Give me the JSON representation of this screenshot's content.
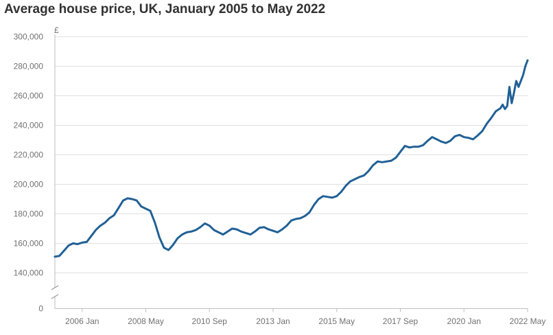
{
  "chart_data": {
    "type": "line",
    "title": "Average house price, UK, January 2005 to May 2022",
    "ylabel": "£",
    "xlabel": "",
    "y_axis_break": true,
    "ylim": [
      0,
      300000
    ],
    "y_ticks": [
      {
        "value": 300000,
        "label": "300,000"
      },
      {
        "value": 280000,
        "label": "280,000"
      },
      {
        "value": 260000,
        "label": "260,000"
      },
      {
        "value": 240000,
        "label": "240,000"
      },
      {
        "value": 220000,
        "label": "220,000"
      },
      {
        "value": 200000,
        "label": "200,000"
      },
      {
        "value": 180000,
        "label": "180,000"
      },
      {
        "value": 160000,
        "label": "160,000"
      },
      {
        "value": 140000,
        "label": "140,000"
      },
      {
        "value": 0,
        "label": "0"
      }
    ],
    "x_ticks": [
      {
        "value": "2006-01",
        "label": "2006 Jan"
      },
      {
        "value": "2008-05",
        "label": "2008 May"
      },
      {
        "value": "2010-09",
        "label": "2010 Sep"
      },
      {
        "value": "2013-01",
        "label": "2013 Jan"
      },
      {
        "value": "2015-05",
        "label": "2015 May"
      },
      {
        "value": "2017-09",
        "label": "2017 Sep"
      },
      {
        "value": "2020-01",
        "label": "2020 Jan"
      },
      {
        "value": "2022-05",
        "label": "2022 May"
      }
    ],
    "grid": true,
    "legend": "none",
    "colors": {
      "line": "#206095",
      "grid": "#e0e0e0",
      "axis": "#bebebe",
      "text": "#707071",
      "title": "#323132"
    },
    "series": [
      {
        "points": [
          [
            "2005-01",
            151000
          ],
          [
            "2005-03",
            151500
          ],
          [
            "2005-05",
            155000
          ],
          [
            "2005-07",
            158500
          ],
          [
            "2005-09",
            160000
          ],
          [
            "2005-11",
            159500
          ],
          [
            "2006-01",
            160500
          ],
          [
            "2006-03",
            161000
          ],
          [
            "2006-05",
            165000
          ],
          [
            "2006-07",
            169000
          ],
          [
            "2006-09",
            172000
          ],
          [
            "2006-11",
            174000
          ],
          [
            "2007-01",
            177000
          ],
          [
            "2007-03",
            179000
          ],
          [
            "2007-05",
            184000
          ],
          [
            "2007-07",
            189000
          ],
          [
            "2007-09",
            190500
          ],
          [
            "2007-11",
            190000
          ],
          [
            "2008-01",
            189000
          ],
          [
            "2008-03",
            185000
          ],
          [
            "2008-05",
            183500
          ],
          [
            "2008-07",
            182000
          ],
          [
            "2008-09",
            174000
          ],
          [
            "2008-11",
            164000
          ],
          [
            "2009-01",
            157000
          ],
          [
            "2009-03",
            155500
          ],
          [
            "2009-05",
            159000
          ],
          [
            "2009-07",
            163500
          ],
          [
            "2009-09",
            166000
          ],
          [
            "2009-11",
            167500
          ],
          [
            "2010-01",
            168000
          ],
          [
            "2010-03",
            169000
          ],
          [
            "2010-05",
            171000
          ],
          [
            "2010-07",
            173500
          ],
          [
            "2010-09",
            172000
          ],
          [
            "2010-11",
            169000
          ],
          [
            "2011-01",
            167500
          ],
          [
            "2011-03",
            166000
          ],
          [
            "2011-05",
            168000
          ],
          [
            "2011-07",
            170000
          ],
          [
            "2011-09",
            169500
          ],
          [
            "2011-11",
            168000
          ],
          [
            "2012-01",
            167000
          ],
          [
            "2012-03",
            166000
          ],
          [
            "2012-05",
            168000
          ],
          [
            "2012-07",
            170500
          ],
          [
            "2012-09",
            171000
          ],
          [
            "2012-11",
            169500
          ],
          [
            "2013-01",
            168500
          ],
          [
            "2013-03",
            167500
          ],
          [
            "2013-05",
            169500
          ],
          [
            "2013-07",
            172000
          ],
          [
            "2013-09",
            175500
          ],
          [
            "2013-11",
            176500
          ],
          [
            "2014-01",
            177000
          ],
          [
            "2014-03",
            178500
          ],
          [
            "2014-05",
            181000
          ],
          [
            "2014-07",
            186000
          ],
          [
            "2014-09",
            190000
          ],
          [
            "2014-11",
            192000
          ],
          [
            "2015-01",
            191500
          ],
          [
            "2015-03",
            191000
          ],
          [
            "2015-05",
            192000
          ],
          [
            "2015-07",
            195000
          ],
          [
            "2015-09",
            199000
          ],
          [
            "2015-11",
            202000
          ],
          [
            "2016-01",
            203500
          ],
          [
            "2016-03",
            205000
          ],
          [
            "2016-05",
            206000
          ],
          [
            "2016-07",
            209000
          ],
          [
            "2016-09",
            213000
          ],
          [
            "2016-11",
            215500
          ],
          [
            "2017-01",
            215000
          ],
          [
            "2017-03",
            215500
          ],
          [
            "2017-05",
            216000
          ],
          [
            "2017-07",
            218000
          ],
          [
            "2017-09",
            222000
          ],
          [
            "2017-11",
            226000
          ],
          [
            "2018-01",
            225000
          ],
          [
            "2018-03",
            225500
          ],
          [
            "2018-05",
            225500
          ],
          [
            "2018-07",
            226500
          ],
          [
            "2018-09",
            229500
          ],
          [
            "2018-11",
            232000
          ],
          [
            "2019-01",
            230500
          ],
          [
            "2019-03",
            229000
          ],
          [
            "2019-05",
            228000
          ],
          [
            "2019-07",
            229500
          ],
          [
            "2019-09",
            232500
          ],
          [
            "2019-11",
            233500
          ],
          [
            "2020-01",
            232000
          ],
          [
            "2020-03",
            231500
          ],
          [
            "2020-05",
            230500
          ],
          [
            "2020-07",
            233000
          ],
          [
            "2020-09",
            236000
          ],
          [
            "2020-11",
            241000
          ],
          [
            "2021-01",
            245000
          ],
          [
            "2021-03",
            249500
          ],
          [
            "2021-05",
            251500
          ],
          [
            "2021-06",
            254000
          ],
          [
            "2021-07",
            251000
          ],
          [
            "2021-08",
            253000
          ],
          [
            "2021-09",
            266000
          ],
          [
            "2021-10",
            255000
          ],
          [
            "2021-11",
            262000
          ],
          [
            "2021-12",
            270000
          ],
          [
            "2022-01",
            266000
          ],
          [
            "2022-02",
            270000
          ],
          [
            "2022-03",
            274000
          ],
          [
            "2022-04",
            280000
          ],
          [
            "2022-05",
            284000
          ]
        ]
      }
    ]
  }
}
